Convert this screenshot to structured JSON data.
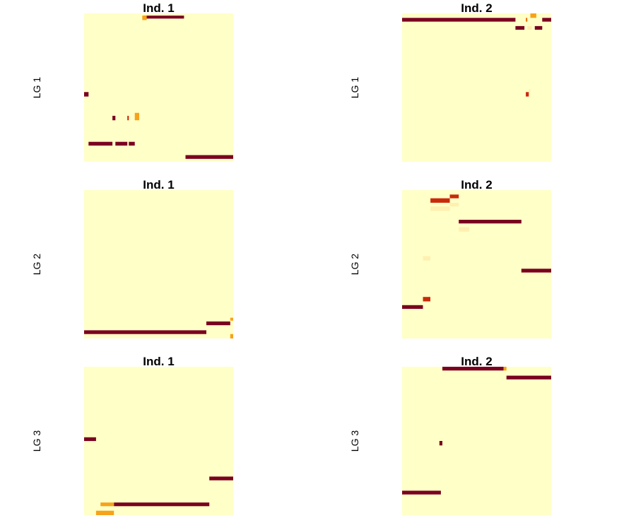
{
  "figure": {
    "background": "#ffffff"
  },
  "chart_data": {
    "type": "heatmap",
    "palette": {
      "low": "#ffffc8",
      "pale": "#fff0b0",
      "mid": "#f7a21b",
      "orange": "#e8700e",
      "red": "#c9290a",
      "high": "#7a0020"
    },
    "grid": false,
    "legend": "none",
    "xlim": [
      0,
      1
    ],
    "ylim": [
      0,
      1
    ],
    "panels": [
      {
        "title": "Ind. 1",
        "ylabel": "LG 1",
        "blocks": [
          {
            "x0": 0.4,
            "x1": 0.67,
            "y0": 0.015,
            "y1": 0.035,
            "level": "high"
          },
          {
            "x0": 0.39,
            "x1": 0.42,
            "y0": 0.015,
            "y1": 0.045,
            "level": "mid"
          },
          {
            "x0": 0.0,
            "x1": 0.03,
            "y0": 0.53,
            "y1": 0.56,
            "level": "high"
          },
          {
            "x0": 0.19,
            "x1": 0.21,
            "y0": 0.69,
            "y1": 0.72,
            "level": "high"
          },
          {
            "x0": 0.29,
            "x1": 0.3,
            "y0": 0.69,
            "y1": 0.72,
            "level": "red"
          },
          {
            "x0": 0.34,
            "x1": 0.37,
            "y0": 0.67,
            "y1": 0.72,
            "level": "mid"
          },
          {
            "x0": 0.03,
            "x1": 0.19,
            "y0": 0.865,
            "y1": 0.89,
            "level": "high"
          },
          {
            "x0": 0.21,
            "x1": 0.29,
            "y0": 0.865,
            "y1": 0.89,
            "level": "high"
          },
          {
            "x0": 0.3,
            "x1": 0.34,
            "y0": 0.865,
            "y1": 0.89,
            "level": "high"
          },
          {
            "x0": 0.68,
            "x1": 1.0,
            "y0": 0.955,
            "y1": 0.98,
            "level": "high"
          }
        ]
      },
      {
        "title": "Ind. 2",
        "ylabel": "LG 1",
        "blocks": [
          {
            "x0": 0.0,
            "x1": 0.76,
            "y0": 0.03,
            "y1": 0.055,
            "level": "high"
          },
          {
            "x0": 0.94,
            "x1": 1.0,
            "y0": 0.03,
            "y1": 0.055,
            "level": "high"
          },
          {
            "x0": 0.86,
            "x1": 0.9,
            "y0": 0.0,
            "y1": 0.03,
            "level": "mid"
          },
          {
            "x0": 0.83,
            "x1": 0.84,
            "y0": 0.03,
            "y1": 0.055,
            "level": "orange"
          },
          {
            "x0": 0.76,
            "x1": 0.82,
            "y0": 0.085,
            "y1": 0.11,
            "level": "high"
          },
          {
            "x0": 0.84,
            "x1": 0.87,
            "y0": 0.085,
            "y1": 0.11,
            "level": "pale"
          },
          {
            "x0": 0.89,
            "x1": 0.94,
            "y0": 0.085,
            "y1": 0.11,
            "level": "high"
          },
          {
            "x0": 0.83,
            "x1": 0.85,
            "y0": 0.53,
            "y1": 0.56,
            "level": "red"
          },
          {
            "x0": 0.85,
            "x1": 0.86,
            "y0": 0.51,
            "y1": 0.53,
            "level": "pale"
          }
        ]
      },
      {
        "title": "Ind. 1",
        "ylabel": "LG 2",
        "blocks": [
          {
            "x0": 0.0,
            "x1": 0.82,
            "y0": 0.945,
            "y1": 0.97,
            "level": "high"
          },
          {
            "x0": 0.82,
            "x1": 0.98,
            "y0": 0.885,
            "y1": 0.91,
            "level": "high"
          },
          {
            "x0": 0.98,
            "x1": 1.0,
            "y0": 0.86,
            "y1": 0.88,
            "level": "mid"
          },
          {
            "x0": 0.98,
            "x1": 1.0,
            "y0": 0.97,
            "y1": 1.0,
            "level": "mid"
          }
        ]
      },
      {
        "title": "Ind. 2",
        "ylabel": "LG 2",
        "blocks": [
          {
            "x0": 0.32,
            "x1": 0.38,
            "y0": 0.03,
            "y1": 0.055,
            "level": "red"
          },
          {
            "x0": 0.19,
            "x1": 0.32,
            "y0": 0.055,
            "y1": 0.085,
            "level": "red"
          },
          {
            "x0": 0.32,
            "x1": 0.38,
            "y0": 0.085,
            "y1": 0.11,
            "level": "pale"
          },
          {
            "x0": 0.19,
            "x1": 0.32,
            "y0": 0.11,
            "y1": 0.14,
            "level": "pale"
          },
          {
            "x0": 0.38,
            "x1": 0.8,
            "y0": 0.2,
            "y1": 0.225,
            "level": "high"
          },
          {
            "x0": 0.38,
            "x1": 0.45,
            "y0": 0.25,
            "y1": 0.28,
            "level": "pale"
          },
          {
            "x0": 0.14,
            "x1": 0.19,
            "y0": 0.445,
            "y1": 0.475,
            "level": "pale"
          },
          {
            "x0": 0.8,
            "x1": 1.0,
            "y0": 0.53,
            "y1": 0.555,
            "level": "high"
          },
          {
            "x0": 0.14,
            "x1": 0.19,
            "y0": 0.72,
            "y1": 0.75,
            "level": "red"
          },
          {
            "x0": 0.0,
            "x1": 0.14,
            "y0": 0.775,
            "y1": 0.8,
            "level": "high"
          }
        ]
      },
      {
        "title": "Ind. 1",
        "ylabel": "LG 3",
        "blocks": [
          {
            "x0": 0.0,
            "x1": 0.08,
            "y0": 0.475,
            "y1": 0.5,
            "level": "high"
          },
          {
            "x0": 0.84,
            "x1": 1.0,
            "y0": 0.74,
            "y1": 0.765,
            "level": "high"
          },
          {
            "x0": 0.2,
            "x1": 0.84,
            "y0": 0.915,
            "y1": 0.94,
            "level": "high"
          },
          {
            "x0": 0.11,
            "x1": 0.2,
            "y0": 0.915,
            "y1": 0.94,
            "level": "mid"
          },
          {
            "x0": 0.08,
            "x1": 0.2,
            "y0": 0.97,
            "y1": 1.0,
            "level": "mid"
          }
        ]
      },
      {
        "title": "Ind. 2",
        "ylabel": "LG 3",
        "blocks": [
          {
            "x0": 0.27,
            "x1": 0.68,
            "y0": 0.0,
            "y1": 0.025,
            "level": "high"
          },
          {
            "x0": 0.68,
            "x1": 0.7,
            "y0": 0.0,
            "y1": 0.025,
            "level": "mid"
          },
          {
            "x0": 0.7,
            "x1": 1.0,
            "y0": 0.06,
            "y1": 0.085,
            "level": "high"
          },
          {
            "x0": 0.25,
            "x1": 0.27,
            "y0": 0.5,
            "y1": 0.53,
            "level": "high"
          },
          {
            "x0": 0.0,
            "x1": 0.26,
            "y0": 0.835,
            "y1": 0.86,
            "level": "high"
          }
        ]
      }
    ]
  }
}
